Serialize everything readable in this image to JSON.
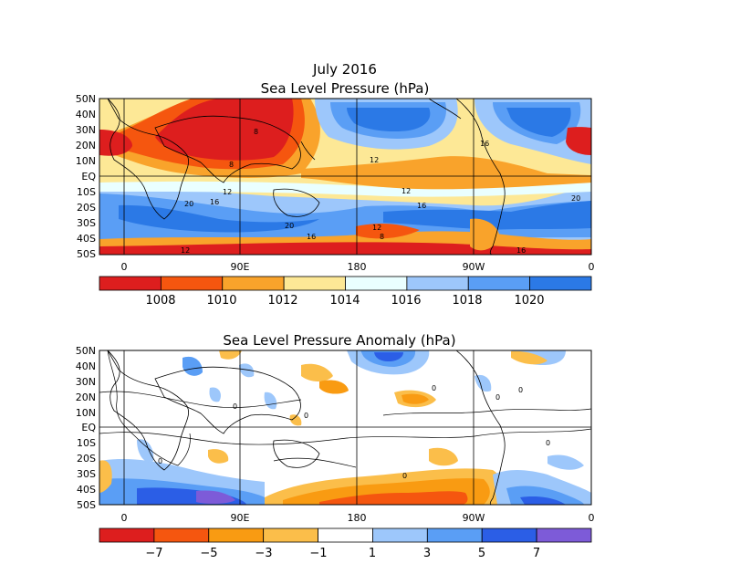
{
  "panels": [
    {
      "id": "slp",
      "title_lines": [
        "July 2016",
        "Sea Level Pressure (hPa)"
      ],
      "lat_labels": [
        "50N",
        "40N",
        "30N",
        "20N",
        "10N",
        "EQ",
        "10S",
        "20S",
        "30S",
        "40S",
        "50S"
      ],
      "lon_labels": [
        "0",
        "90E",
        "180",
        "90W",
        "0"
      ],
      "contour_labels": [
        "8",
        "8",
        "12",
        "16",
        "12",
        "16",
        "20",
        "12",
        "16",
        "20",
        "16",
        "20",
        "12",
        "8",
        "16",
        "12"
      ],
      "colorbar": {
        "labels": [
          "1008",
          "1010",
          "1012",
          "1014",
          "1016",
          "1018",
          "1020"
        ],
        "colors": [
          "#dd1e1e",
          "#f5560f",
          "#f9a32b",
          "#fde896",
          "#eaffff",
          "#9dc7fb",
          "#5a9ef5",
          "#2b79e6"
        ]
      }
    },
    {
      "id": "anom",
      "title_lines": [
        "Sea Level Pressure Anomaly (hPa)"
      ],
      "lat_labels": [
        "50N",
        "40N",
        "30N",
        "20N",
        "10N",
        "EQ",
        "10S",
        "20S",
        "30S",
        "40S",
        "50S"
      ],
      "lon_labels": [
        "0",
        "90E",
        "180",
        "90W",
        "0"
      ],
      "contour_labels": [
        "0",
        "0",
        "0",
        "0",
        "0",
        "0",
        "0",
        "0"
      ],
      "colorbar": {
        "labels": [
          "−7",
          "−5",
          "−3",
          "−1",
          "1",
          "3",
          "5",
          "7"
        ],
        "colors": [
          "#dd1e1e",
          "#f5560f",
          "#f99b12",
          "#fbbe4a",
          "#ffffff",
          "#9dc7fb",
          "#5a9ef5",
          "#2b5ee6",
          "#7d5bd8"
        ]
      }
    }
  ],
  "colors": {
    "land_outline": "#000000",
    "red": "#dd1e1e",
    "orange": "#f5560f",
    "amber": "#f9a32b",
    "yellow": "#fde896",
    "cyan": "#eaffff",
    "light_blue": "#9dc7fb",
    "blue": "#5a9ef5",
    "deep_blue": "#2b79e6",
    "purple": "#7d5bd8"
  }
}
